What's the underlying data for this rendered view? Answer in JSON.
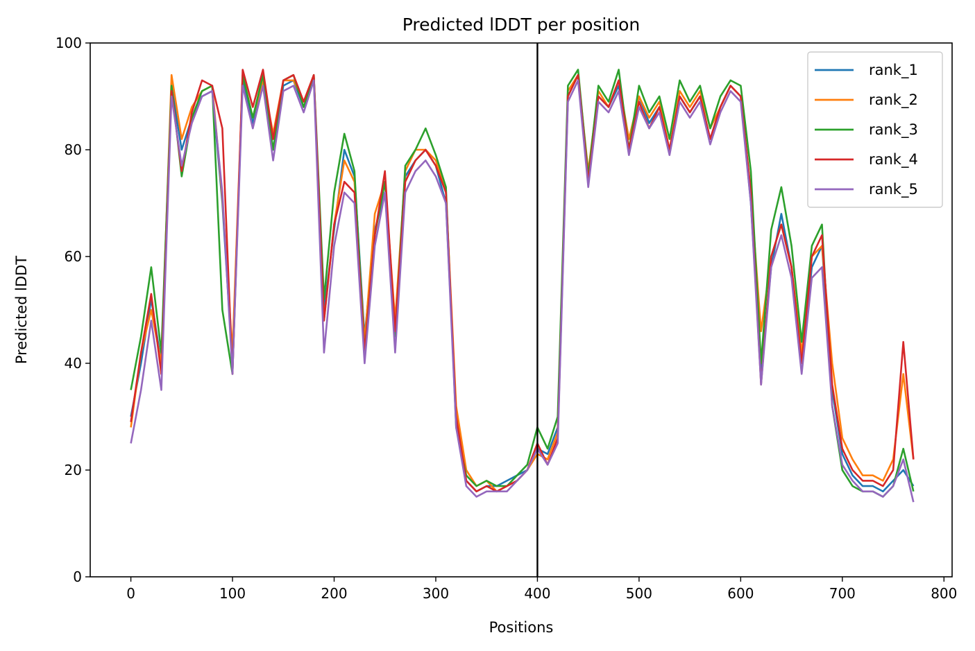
{
  "chart_data": {
    "type": "line",
    "title": "Predicted lDDT per position",
    "xlabel": "Positions",
    "ylabel": "Predicted lDDT",
    "xlim": [
      -40,
      808
    ],
    "ylim": [
      0,
      100
    ],
    "xticks": [
      0,
      100,
      200,
      300,
      400,
      500,
      600,
      700,
      800
    ],
    "yticks": [
      0,
      20,
      40,
      60,
      80,
      100
    ],
    "grid": false,
    "legend_position": "top-right",
    "vline": {
      "x": 400,
      "color": "#000000"
    },
    "x": [
      0,
      10,
      20,
      30,
      40,
      50,
      60,
      70,
      80,
      90,
      100,
      110,
      120,
      130,
      140,
      150,
      160,
      170,
      180,
      190,
      200,
      210,
      220,
      230,
      240,
      250,
      260,
      270,
      280,
      290,
      300,
      310,
      320,
      330,
      340,
      350,
      360,
      370,
      380,
      390,
      400,
      410,
      420,
      430,
      440,
      450,
      460,
      470,
      480,
      490,
      500,
      510,
      520,
      530,
      540,
      550,
      560,
      570,
      580,
      590,
      600,
      610,
      620,
      630,
      640,
      650,
      660,
      670,
      680,
      690,
      700,
      710,
      720,
      730,
      740,
      750,
      760,
      770
    ],
    "series": [
      {
        "name": "rank_1",
        "color": "#1f77b4",
        "values": [
          30,
          40,
          52,
          40,
          92,
          80,
          86,
          90,
          91,
          70,
          40,
          93,
          85,
          92,
          80,
          92,
          93,
          88,
          93,
          50,
          65,
          80,
          75,
          45,
          65,
          72,
          46,
          75,
          78,
          80,
          77,
          70,
          30,
          18,
          16,
          17,
          17,
          18,
          19,
          20,
          24,
          23,
          28,
          90,
          94,
          75,
          90,
          88,
          92,
          80,
          90,
          85,
          88,
          80,
          90,
          87,
          90,
          82,
          88,
          92,
          90,
          70,
          38,
          58,
          68,
          58,
          40,
          58,
          62,
          35,
          23,
          19,
          17,
          17,
          16,
          18,
          20,
          17
        ]
      },
      {
        "name": "rank_2",
        "color": "#ff7f0e",
        "values": [
          28,
          42,
          50,
          40,
          94,
          82,
          88,
          91,
          92,
          71,
          42,
          94,
          86,
          93,
          83,
          93,
          93,
          89,
          94,
          48,
          66,
          78,
          74,
          44,
          68,
          74,
          48,
          76,
          80,
          80,
          78,
          72,
          32,
          20,
          17,
          18,
          16,
          17,
          18,
          20,
          23,
          22,
          27,
          91,
          94,
          76,
          91,
          88,
          93,
          82,
          90,
          86,
          89,
          80,
          91,
          88,
          91,
          84,
          88,
          92,
          90,
          72,
          46,
          60,
          66,
          58,
          42,
          60,
          62,
          40,
          26,
          22,
          19,
          19,
          18,
          22,
          38,
          22
        ]
      },
      {
        "name": "rank_3",
        "color": "#2ca02c",
        "values": [
          35,
          45,
          58,
          42,
          92,
          75,
          86,
          91,
          92,
          50,
          38,
          94,
          86,
          94,
          80,
          93,
          94,
          88,
          94,
          52,
          72,
          83,
          76,
          42,
          64,
          74,
          45,
          77,
          80,
          84,
          79,
          73,
          28,
          19,
          17,
          18,
          17,
          17,
          19,
          21,
          28,
          24,
          30,
          92,
          95,
          75,
          92,
          89,
          95,
          80,
          92,
          87,
          90,
          82,
          93,
          89,
          92,
          84,
          90,
          93,
          92,
          76,
          40,
          65,
          73,
          62,
          44,
          62,
          66,
          32,
          20,
          17,
          16,
          16,
          15,
          17,
          24,
          16
        ]
      },
      {
        "name": "rank_4",
        "color": "#d62728",
        "values": [
          29,
          42,
          53,
          38,
          91,
          76,
          87,
          93,
          92,
          84,
          38,
          95,
          88,
          95,
          82,
          93,
          94,
          89,
          94,
          48,
          66,
          74,
          72,
          42,
          64,
          76,
          46,
          74,
          78,
          80,
          77,
          72,
          30,
          18,
          16,
          17,
          16,
          17,
          18,
          20,
          25,
          21,
          26,
          90,
          94,
          74,
          90,
          88,
          93,
          80,
          89,
          84,
          88,
          80,
          90,
          87,
          90,
          82,
          88,
          92,
          90,
          72,
          36,
          60,
          66,
          58,
          40,
          60,
          64,
          36,
          24,
          20,
          18,
          18,
          17,
          20,
          44,
          22
        ]
      },
      {
        "name": "rank_5",
        "color": "#9467bd",
        "values": [
          25,
          35,
          48,
          35,
          90,
          77,
          85,
          90,
          91,
          72,
          38,
          92,
          84,
          92,
          78,
          91,
          92,
          87,
          93,
          42,
          62,
          72,
          70,
          40,
          62,
          72,
          42,
          72,
          76,
          78,
          75,
          70,
          28,
          17,
          15,
          16,
          16,
          16,
          18,
          20,
          24,
          21,
          25,
          89,
          93,
          73,
          89,
          87,
          91,
          79,
          88,
          84,
          87,
          79,
          89,
          86,
          89,
          81,
          87,
          91,
          89,
          70,
          36,
          58,
          64,
          56,
          38,
          56,
          58,
          32,
          21,
          18,
          16,
          16,
          15,
          17,
          22,
          14
        ]
      }
    ]
  }
}
